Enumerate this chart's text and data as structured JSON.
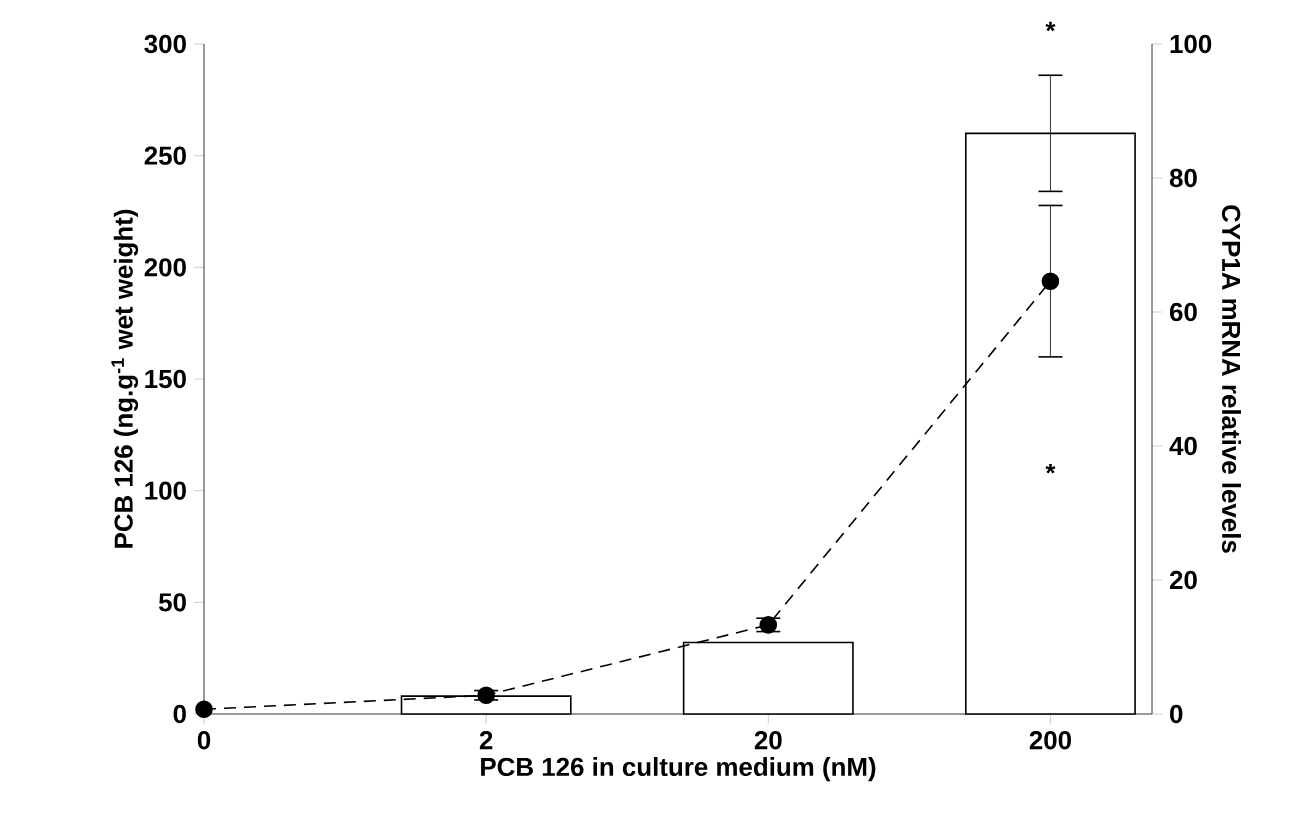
{
  "chart_data": {
    "type": "bar",
    "xlabel": "PCB 126 in culture medium (nM)",
    "ylabel": "PCB 126 (ng.g$^{-1}$ wet weight)",
    "y2label": "CYP1A mRNA relative levels",
    "categories": [
      "0",
      "2",
      "20",
      "200"
    ],
    "series": [
      {
        "color": "#ffffff",
        "values": [
          null,
          8,
          32,
          260
        ],
        "errors": [
          null,
          null,
          null,
          26
        ]
      },
      {
        "type": "line",
        "axis": "y2",
        "color": "#000000",
        "marker": "circle",
        "line_style": "dashed",
        "values": [
          0.7,
          2.8,
          13.3,
          64.6
        ],
        "errors": [
          null,
          0.7,
          1,
          11.3
        ]
      }
    ],
    "ylim": [
      0,
      300
    ],
    "yticks": [
      0,
      50,
      100,
      150,
      200,
      250,
      300
    ],
    "y2lim": [
      0,
      100
    ],
    "y2ticks": [
      0,
      20,
      40,
      60,
      80,
      100
    ],
    "annotations": [
      "*",
      "*"
    ]
  }
}
